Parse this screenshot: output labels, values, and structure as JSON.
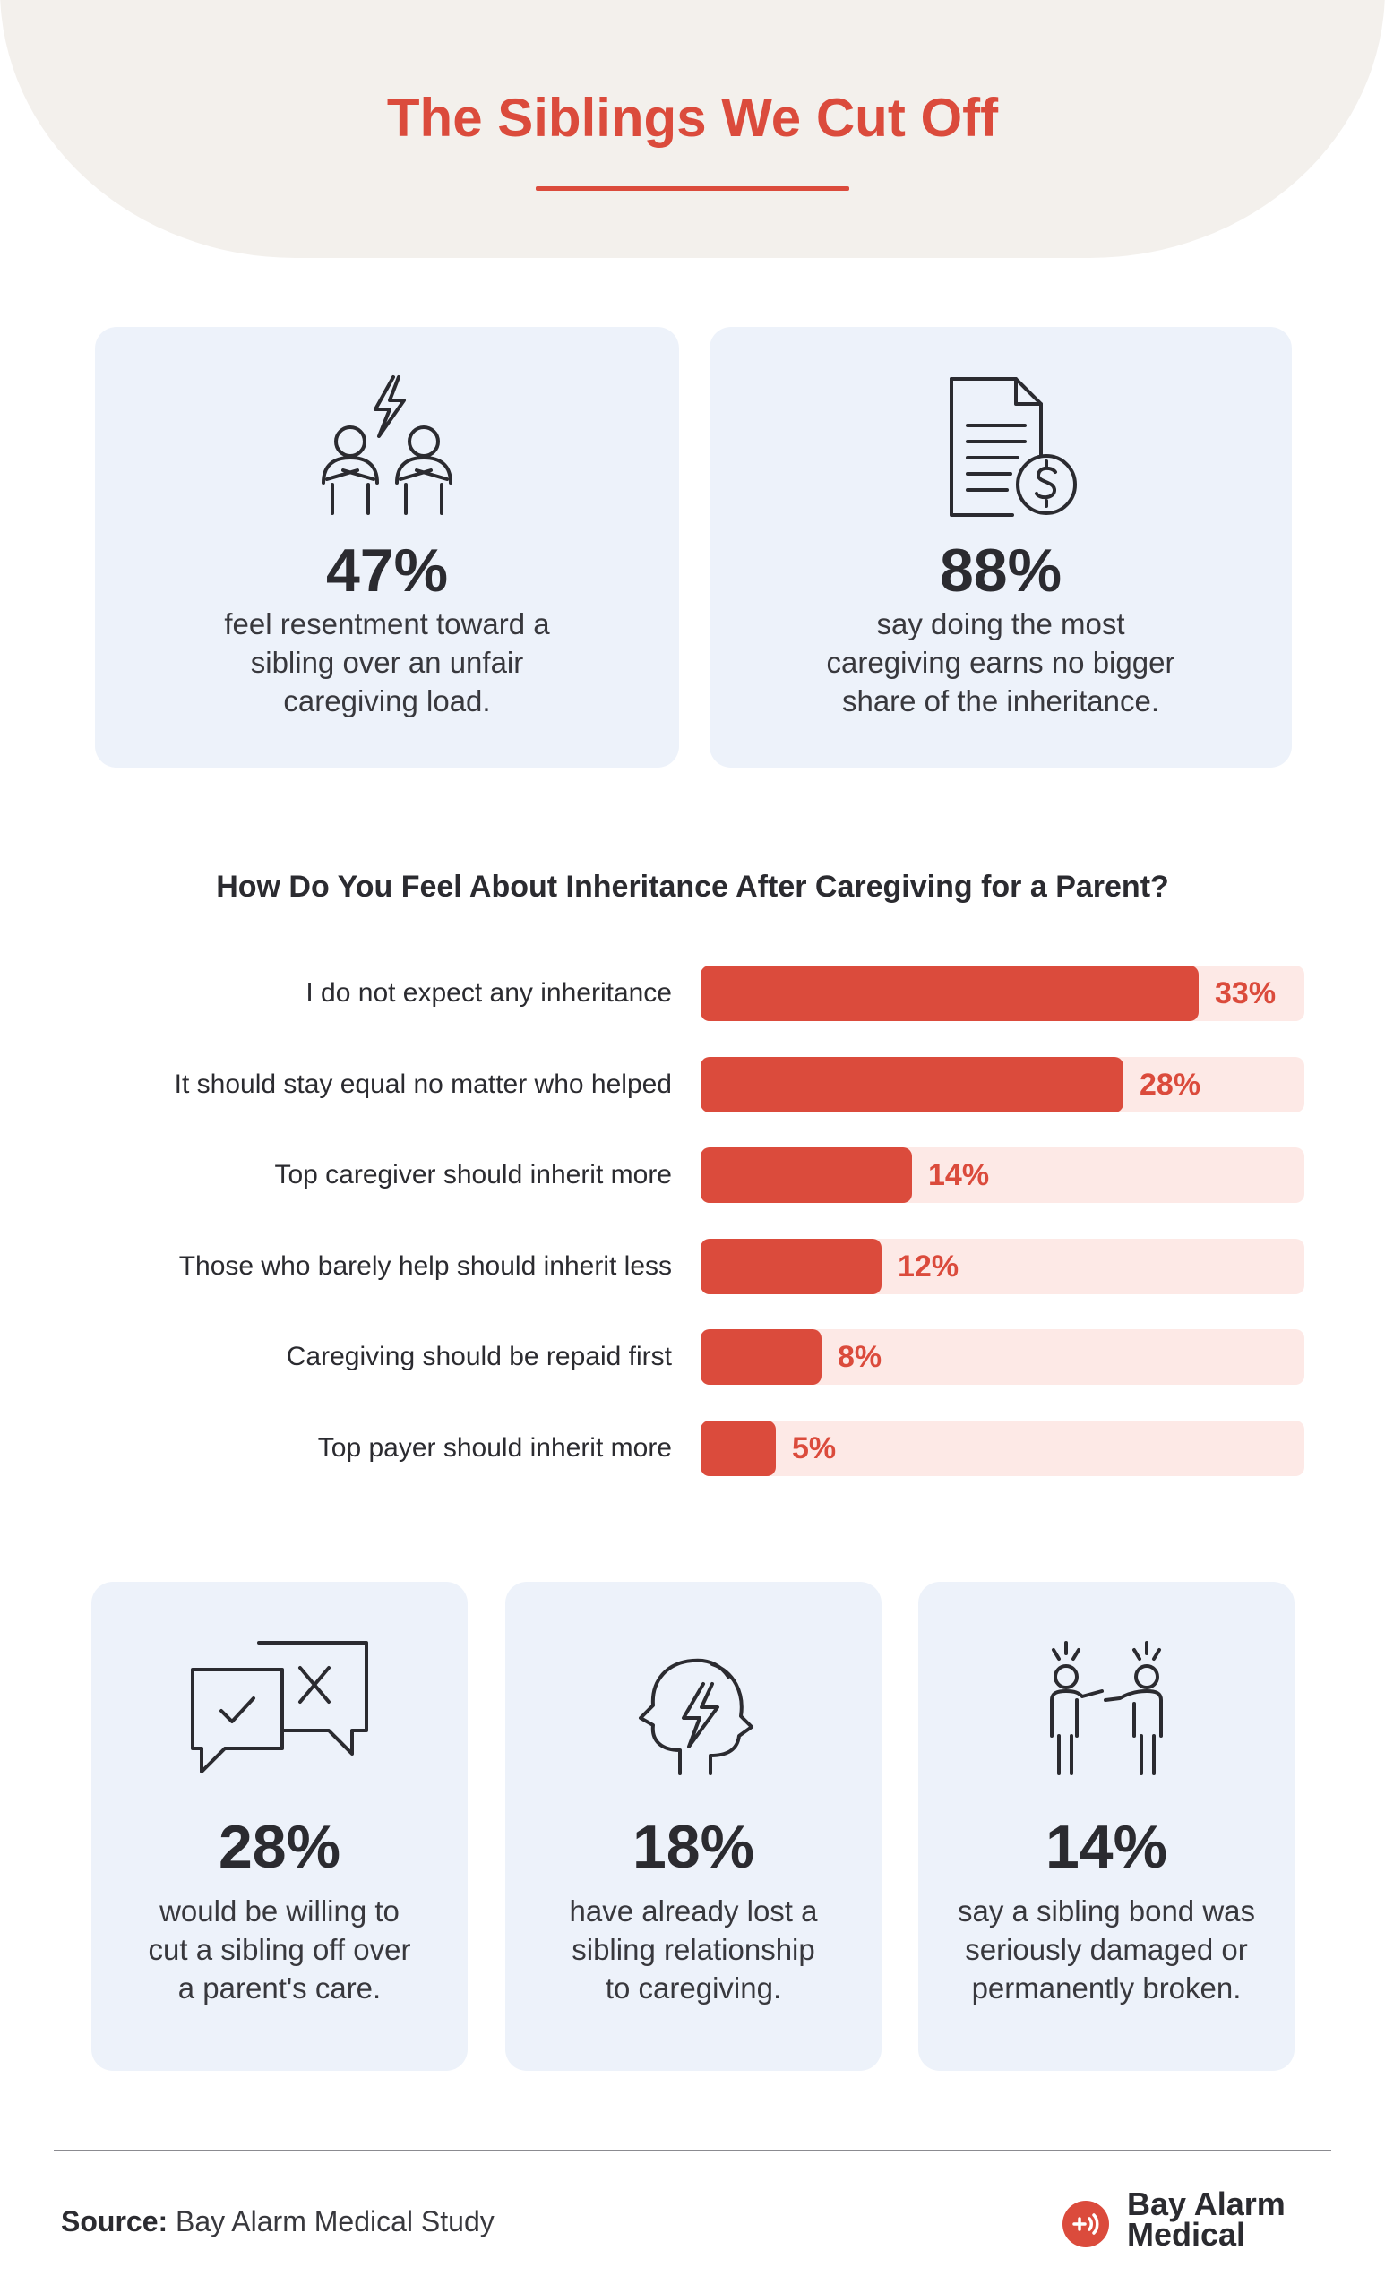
{
  "header": {
    "title": "The Siblings We Cut Off"
  },
  "top_stats": [
    {
      "value": "47%",
      "text": [
        "feel resentment toward a",
        "sibling over an unfair",
        "caregiving load."
      ],
      "icon": "arguing-people-icon"
    },
    {
      "value": "88%",
      "text": [
        "say doing the most",
        "caregiving earns no bigger",
        "share of the inheritance."
      ],
      "icon": "document-dollar-icon"
    }
  ],
  "chart_data": {
    "type": "bar",
    "orientation": "horizontal",
    "title": "How Do You Feel About Inheritance After Caregiving for a Parent?",
    "categories": [
      "I do not expect any inheritance",
      "It should stay equal no matter who helped",
      "Top caregiver should inherit more",
      "Those who barely help should inherit less",
      "Caregiving should be repaid first",
      "Top payer should inherit more"
    ],
    "values": [
      33,
      28,
      14,
      12,
      8,
      5
    ],
    "value_labels": [
      "33%",
      "28%",
      "14%",
      "12%",
      "8%",
      "5%"
    ],
    "xlim": [
      0,
      40
    ],
    "colors": {
      "bar": "#db4b3c",
      "track": "#fde9e6"
    }
  },
  "bottom_stats": [
    {
      "value": "28%",
      "text": [
        "would be willing to",
        "cut a sibling off over",
        "a parent's care."
      ],
      "icon": "chat-check-x-icon"
    },
    {
      "value": "18%",
      "text": [
        "have already lost a",
        "sibling relationship",
        "to caregiving."
      ],
      "icon": "stressed-head-icon"
    },
    {
      "value": "14%",
      "text": [
        "say a sibling bond was",
        "seriously damaged or",
        "permanently broken."
      ],
      "icon": "pointing-people-icon"
    }
  ],
  "footer": {
    "source_label": "Source:",
    "source_text": "Bay Alarm Medical Study",
    "brand_line1": "Bay Alarm",
    "brand_line2": "Medical"
  },
  "colors": {
    "accent": "#db4b3c",
    "card": "#edf2fa",
    "header": "#f3f0ec"
  }
}
